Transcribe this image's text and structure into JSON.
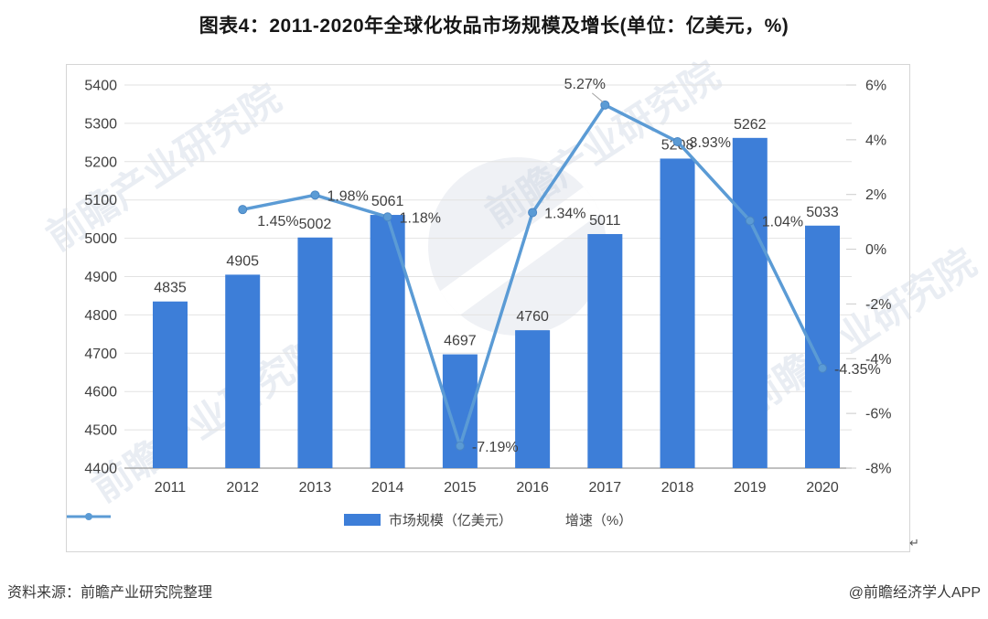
{
  "title": "图表4：2011-2020年全球化妆品市场规模及增长(单位：亿美元，%)",
  "footer": {
    "source": "资料来源：前瞻产业研究院整理",
    "brand": "@前瞻经济学人APP"
  },
  "panel": {
    "return_mark": "↵"
  },
  "watermark": {
    "text": "前瞻产业研究院"
  },
  "chart_data": {
    "type": "bar",
    "subtype": "bar+line combo, dual axis",
    "title": "图表4：2011-2020年全球化妆品市场规模及增长(单位：亿美元，%)",
    "categories": [
      "2011",
      "2012",
      "2013",
      "2014",
      "2015",
      "2016",
      "2017",
      "2018",
      "2019",
      "2020"
    ],
    "series": [
      {
        "name": "市场规模（亿美元）",
        "type": "bar",
        "axis": "left",
        "values": [
          4835,
          4905,
          5002,
          5061,
          4697,
          4760,
          5011,
          5208,
          5262,
          5033
        ],
        "labels": [
          "4835",
          "4905",
          "5002",
          "5061",
          "4697",
          "4760",
          "5011",
          "5208",
          "5262",
          "5033"
        ]
      },
      {
        "name": "增速（%）",
        "type": "line",
        "axis": "right",
        "values": [
          null,
          1.45,
          1.98,
          1.18,
          -7.19,
          1.34,
          5.27,
          3.93,
          1.04,
          -4.35
        ],
        "labels": [
          null,
          "1.45%",
          "1.98%",
          "1.18%",
          "-7.19%",
          "1.34%",
          "5.27%",
          "3.93%",
          "1.04%",
          "-4.35%"
        ]
      }
    ],
    "left_axis": {
      "min": 4400,
      "max": 5400,
      "step": 100,
      "ticks": [
        "5400",
        "5300",
        "5200",
        "5100",
        "5000",
        "4900",
        "4800",
        "4700",
        "4600",
        "4500",
        "4400"
      ]
    },
    "right_axis": {
      "min": -8,
      "max": 6,
      "step": 2,
      "ticks": [
        "6%",
        "4%",
        "2%",
        "0%",
        "-2%",
        "-4%",
        "-6%",
        "-8%"
      ]
    },
    "grid": true,
    "legend_position": "bottom",
    "colors": {
      "bar": "#3d7ed8",
      "line": "#5b9bd5",
      "marker_stroke": "#4a86c4",
      "label": "#404040",
      "grid": "#e2e2e2",
      "axis": "#9b9b9b",
      "leader": "#a0a0a0"
    }
  }
}
